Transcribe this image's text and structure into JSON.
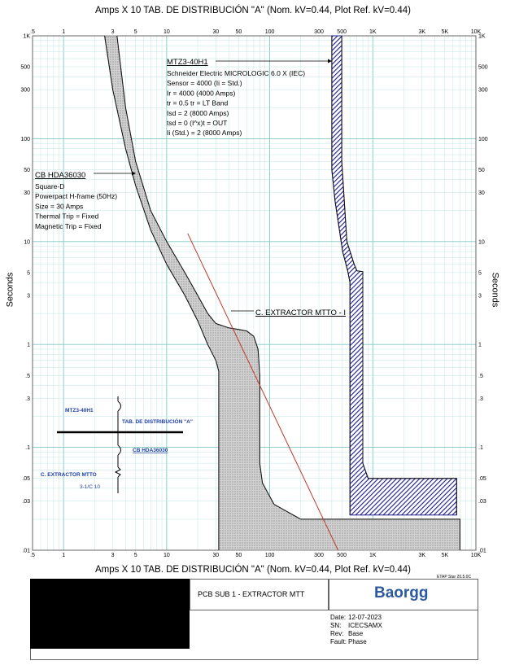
{
  "header": {
    "top_title": "Amps  X  10   TAB. DE DISTRIBUCIÓN \"A\" (Nom. kV=0.44, Plot Ref. kV=0.44)",
    "bottom_title": "Amps  X  10   TAB. DE DISTRIBUCIÓN \"A\" (Nom. kV=0.44, Plot Ref. kV=0.44)",
    "y_label_left": "Seconds",
    "y_label_right": "Seconds",
    "version": "ETAP Star 20.5.0C"
  },
  "chart_data": {
    "type": "line",
    "x_scale": "log",
    "y_scale": "log",
    "xlim": [
      0.5,
      10000
    ],
    "ylim": [
      0.01,
      1000
    ],
    "x_ticks": [
      {
        "v": 0.5,
        "label": ".5"
      },
      {
        "v": 1,
        "label": "1"
      },
      {
        "v": 3,
        "label": "3"
      },
      {
        "v": 5,
        "label": "5"
      },
      {
        "v": 10,
        "label": "10"
      },
      {
        "v": 30,
        "label": "30"
      },
      {
        "v": 50,
        "label": "50"
      },
      {
        "v": 100,
        "label": "100"
      },
      {
        "v": 300,
        "label": "300"
      },
      {
        "v": 500,
        "label": "500"
      },
      {
        "v": 1000,
        "label": "1K"
      },
      {
        "v": 3000,
        "label": "3K"
      },
      {
        "v": 5000,
        "label": "5K"
      },
      {
        "v": 10000,
        "label": "10K"
      }
    ],
    "y_ticks": [
      {
        "v": 0.01,
        "label": ".01"
      },
      {
        "v": 0.03,
        "label": ".03"
      },
      {
        "v": 0.05,
        "label": ".05"
      },
      {
        "v": 0.1,
        "label": ".1"
      },
      {
        "v": 0.3,
        "label": ".3"
      },
      {
        "v": 0.5,
        "label": ".5"
      },
      {
        "v": 1,
        "label": "1"
      },
      {
        "v": 3,
        "label": "3"
      },
      {
        "v": 5,
        "label": "5"
      },
      {
        "v": 10,
        "label": "10"
      },
      {
        "v": 30,
        "label": "30"
      },
      {
        "v": 50,
        "label": "50"
      },
      {
        "v": 100,
        "label": "100"
      },
      {
        "v": 300,
        "label": "300"
      },
      {
        "v": 500,
        "label": "500"
      },
      {
        "v": 1000,
        "label": "1K"
      }
    ],
    "series": [
      {
        "name": "CB HDA36030",
        "color": "#808080",
        "fill": "stipple",
        "upper": [
          [
            3.3,
            1000
          ],
          [
            4,
            200
          ],
          [
            5,
            60
          ],
          [
            7,
            20
          ],
          [
            10,
            10
          ],
          [
            15,
            5
          ],
          [
            20,
            3
          ],
          [
            25,
            2
          ],
          [
            30,
            1.6
          ],
          [
            40,
            1.45
          ],
          [
            50,
            1.4
          ],
          [
            60,
            1.35
          ],
          [
            70,
            1.2
          ],
          [
            77,
            0.9
          ],
          [
            80,
            0.5
          ],
          [
            80,
            0.07
          ],
          [
            85,
            0.045
          ],
          [
            110,
            0.028
          ],
          [
            200,
            0.02
          ],
          [
            7000,
            0.02
          ],
          [
            7000,
            0.01
          ]
        ],
        "lower": [
          [
            2.5,
            1000
          ],
          [
            3,
            300
          ],
          [
            4,
            80
          ],
          [
            5,
            35
          ],
          [
            7,
            13
          ],
          [
            10,
            6
          ],
          [
            15,
            3
          ],
          [
            20,
            1.7
          ],
          [
            25,
            1.0
          ],
          [
            30,
            0.7
          ],
          [
            32,
            0.55
          ],
          [
            32,
            0.01
          ]
        ]
      },
      {
        "name": "MTZ3-40H1",
        "color": "#1a1a8c",
        "fill": "hatch",
        "upper": [
          [
            500,
            1000
          ],
          [
            500,
            60
          ],
          [
            560,
            10
          ],
          [
            660,
            6
          ],
          [
            700,
            5.2
          ],
          [
            800,
            5.1
          ],
          [
            800,
            0.07
          ],
          [
            900,
            0.05
          ],
          [
            6500,
            0.05
          ],
          [
            6500,
            0.022
          ]
        ],
        "lower": [
          [
            400,
            1000
          ],
          [
            400,
            50
          ],
          [
            430,
            25
          ],
          [
            510,
            8
          ],
          [
            570,
            5.2
          ],
          [
            600,
            4
          ],
          [
            600,
            0.022
          ]
        ]
      },
      {
        "name": "C. EXTRACTOR MTTO",
        "color": "#c0392b",
        "points": [
          [
            16,
            12
          ],
          [
            460,
            0.01
          ]
        ]
      }
    ],
    "annotations": {
      "mtz": {
        "title": "MTZ3-40H1",
        "lines": [
          "Schneider Electric  MICROLOGIC 6.0 X (IEC)",
          "Sensor = 4000 (Ii =  Std.)",
          "Ir = 4000 (4000 Amps)",
          "tr = 0.5  tr = LT Band",
          "Isd = 2 (8000 Amps)",
          "tsd = 0  (I^x)t = OUT",
          "Ii (Std.)  = 2 (8000 Amps)"
        ]
      },
      "cb": {
        "title": "CB HDA36030",
        "lines": [
          "Square-D",
          "Powerpact H-frame (50Hz)",
          "Size = 30 Amps",
          "Thermal Trip = Fixed",
          "Magnetic Trip = Fixed"
        ]
      },
      "load": {
        "title": "C. EXTRACTOR MTTO - I"
      }
    },
    "one_line": {
      "main_breaker": "MTZ3-40H1",
      "bus": "TAB. DE DISTRIBUCIÓN \"A\"",
      "feeder_breaker": "CB HDA36030",
      "load": "C. EXTRACTOR MTTO",
      "cable": "3-1/C 10"
    }
  },
  "title_block": {
    "project": "PCB SUB 1 - EXTRACTOR MTT",
    "logo": "Baorgg",
    "date_label": "Date:",
    "date": "12-07-2023",
    "sn_label": "SN:",
    "sn": "ICECSAMX",
    "rev_label": "Rev:",
    "rev": "Base",
    "fault_label": "Fault:",
    "fault": "Phase"
  }
}
